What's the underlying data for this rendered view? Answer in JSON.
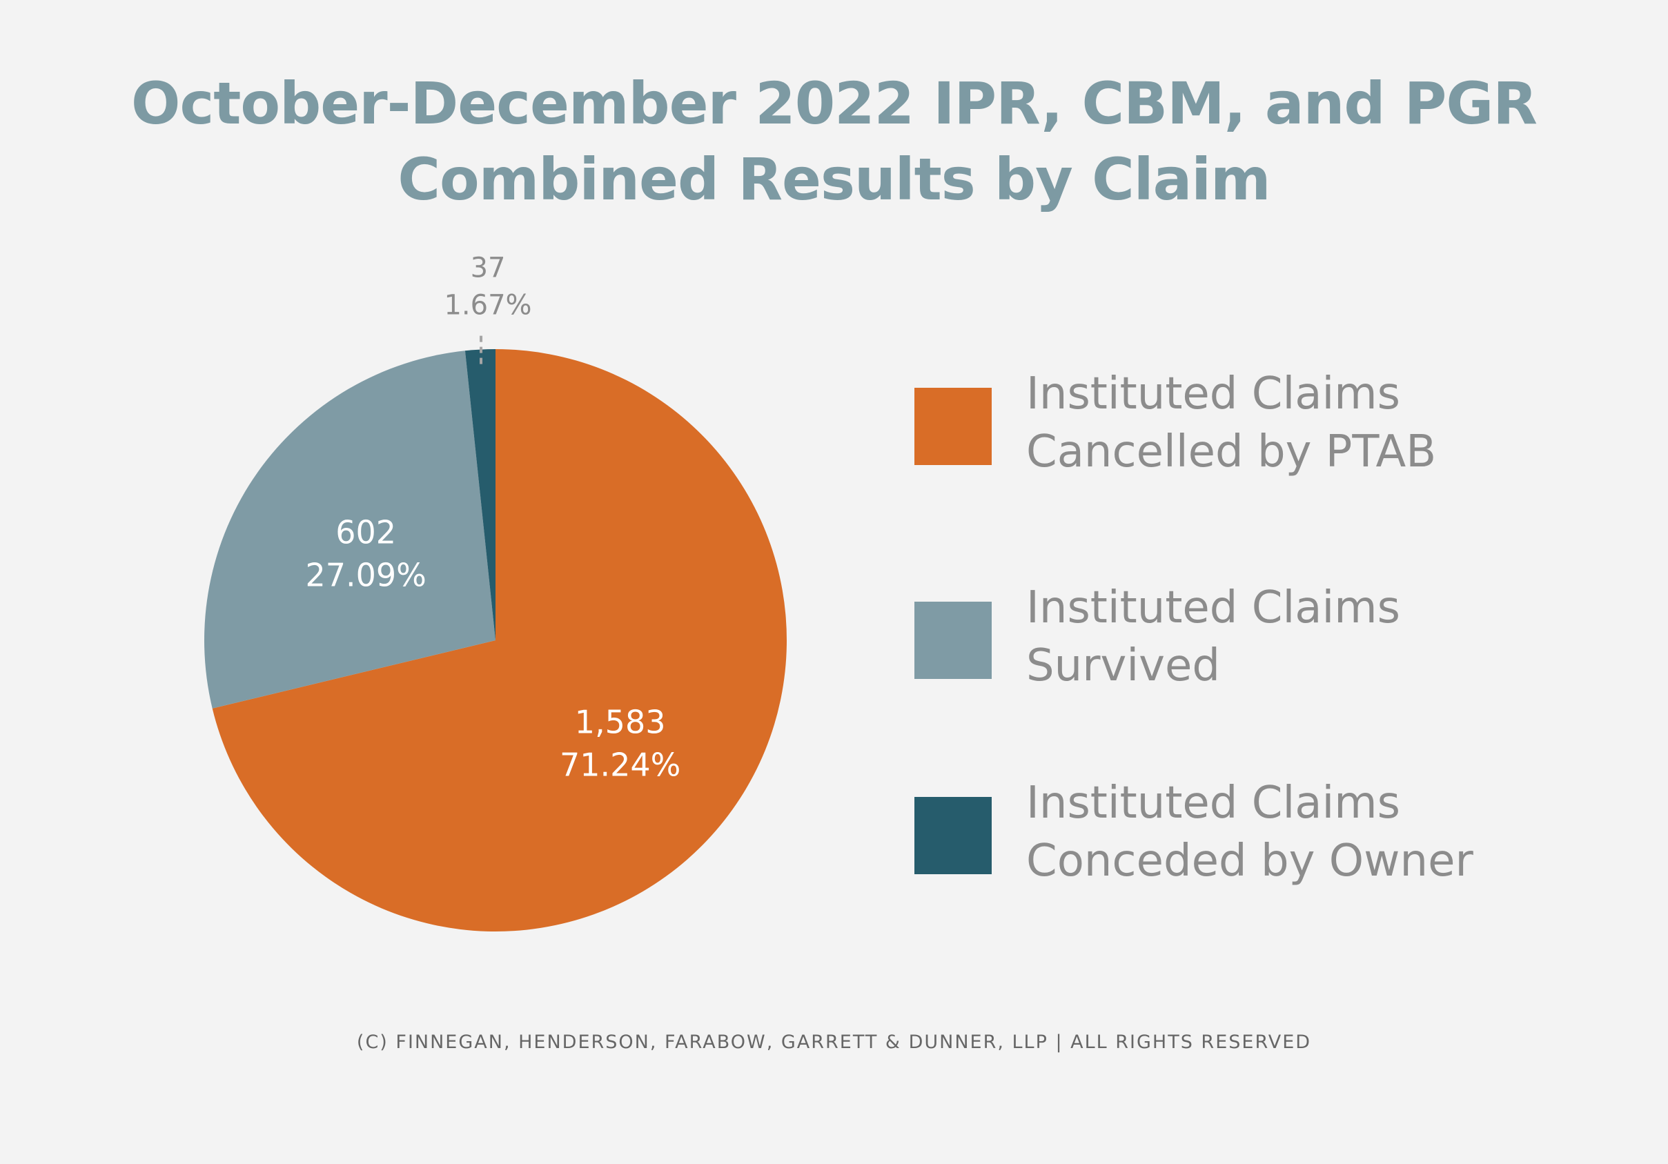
{
  "title_line1": "October-December 2022 IPR, CBM, and PGR",
  "title_line2": "Combined Results by Claim",
  "colors": {
    "background": "#f3f3f3",
    "title": "#7d9aa3",
    "legend_text": "#8c8c8c",
    "footer": "#666666"
  },
  "chart_data": {
    "type": "pie",
    "title": "October-December 2022 IPR, CBM, and PGR Combined Results by Claim",
    "start": "12 o'clock",
    "direction": "clockwise",
    "legend_position": "right",
    "slices": [
      {
        "label_line1": "Instituted Claims",
        "label_line2": "Cancelled by PTAB",
        "value": 1583,
        "value_label": "1,583",
        "percent_label": "71.24%",
        "percent": 71.24,
        "color": "#d96d27",
        "label_color": "#ffffff",
        "label_placement": "inside"
      },
      {
        "label_line1": "Instituted Claims",
        "label_line2": "Survived",
        "value": 602,
        "value_label": "602",
        "percent_label": "27.09%",
        "percent": 27.09,
        "color": "#7f9ba5",
        "label_color": "#ffffff",
        "label_placement": "inside"
      },
      {
        "label_line1": "Instituted Claims",
        "label_line2": "Conceded by Owner",
        "value": 37,
        "value_label": "37",
        "percent_label": "1.67%",
        "percent": 1.67,
        "color": "#265c6c",
        "label_color": "#8c8c8c",
        "label_placement": "outside-with-leader"
      }
    ]
  },
  "footer": "(C) FINNEGAN, HENDERSON, FARABOW, GARRETT & DUNNER, LLP | ALL RIGHTS RESERVED"
}
